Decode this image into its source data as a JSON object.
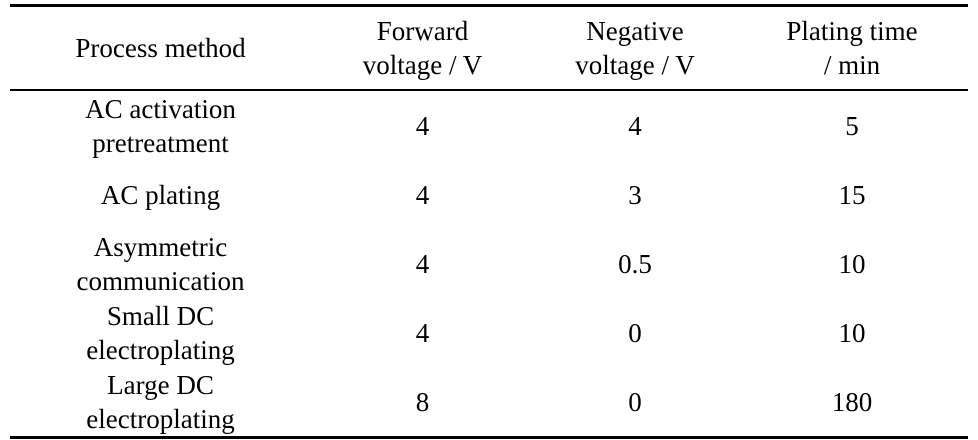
{
  "table": {
    "headers": [
      [
        "Process method"
      ],
      [
        "Forward",
        "voltage / V"
      ],
      [
        "Negative",
        "voltage / V"
      ],
      [
        "Plating time",
        "/ min"
      ]
    ],
    "rows": [
      {
        "method": [
          "AC activation",
          "pretreatment"
        ],
        "forward": "4",
        "negative": "4",
        "time": "5"
      },
      {
        "method": [
          "AC plating"
        ],
        "forward": "4",
        "negative": "3",
        "time": "15"
      },
      {
        "method": [
          "Asymmetric",
          "communication"
        ],
        "forward": "4",
        "negative": "0.5",
        "time": "10"
      },
      {
        "method": [
          "Small DC",
          "electroplating"
        ],
        "forward": "4",
        "negative": "0",
        "time": "10"
      },
      {
        "method": [
          "Large DC",
          "electroplating"
        ],
        "forward": "8",
        "negative": "0",
        "time": "180"
      }
    ]
  }
}
